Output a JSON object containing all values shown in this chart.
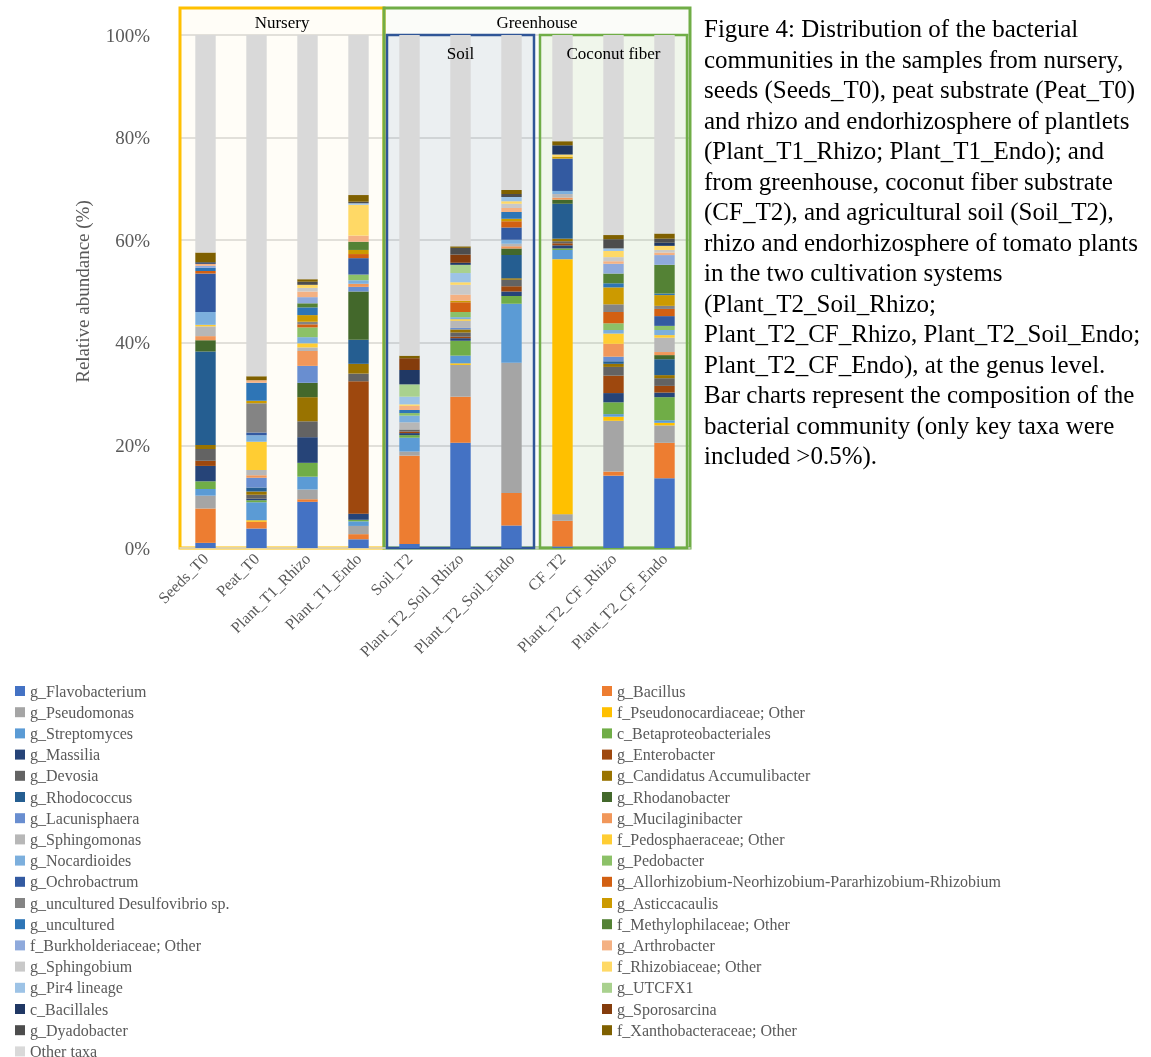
{
  "chart_data": {
    "type": "bar",
    "stacked": true,
    "ylabel": "Relative abundance (%)",
    "categories": [
      "Seeds_T0",
      "Peat_T0",
      "Plant_T1_Rhizo",
      "Plant_T1_Endo",
      "Soil_T2",
      "Plant_T2_Soil_Rhizo",
      "Plant_T2_Soil_Endo",
      "CF_T2",
      "Plant_T2_CF_Rhizo",
      "Plant_T2_CF_Endo"
    ],
    "ylim": [
      0,
      100
    ],
    "yticks": [
      {
        "value": 0,
        "label": "0%"
      },
      {
        "value": 20,
        "label": "20%"
      },
      {
        "value": 40,
        "label": "40%"
      },
      {
        "value": 60,
        "label": "60%"
      },
      {
        "value": 80,
        "label": "80%"
      },
      {
        "value": 100,
        "label": "100%"
      }
    ],
    "grid": "y",
    "legend": "bottom",
    "bands": [
      {
        "axis": "x",
        "from": "Seeds_T0",
        "to": "Plant_T1_Endo",
        "label": "Nursery",
        "color": "#ffc000"
      },
      {
        "axis": "x",
        "from": "Soil_T2",
        "to": "Plant_T2_CF_Endo",
        "label": "Greenhouse",
        "color": "#70ad47"
      },
      {
        "axis": "x",
        "from": "Soil_T2",
        "to": "Plant_T2_Soil_Endo",
        "label": "Soil",
        "color": "#2f5597"
      },
      {
        "axis": "x",
        "from": "CF_T2",
        "to": "Plant_T2_CF_Endo",
        "label": "Coconut fiber",
        "color": "#70ad47"
      }
    ],
    "annotations": [
      "Figure 4: Distribution of the bacterial communities in the samples from nursery, seeds (Seeds_T0), peat substrate (Peat_T0) and rhizo and endorhizosphere of plantlets (Plant_T1_Rhizo; Plant_T1_Endo); and from greenhouse, coconut fiber substrate (CF_T2), and agricultural soil (Soil_T2), rhizo and endorhizosphere of tomato plants in the two cultivation systems (Plant_T2_Soil_Rhizo; Plant_T2_CF_Rhizo, Plant_T2_Soil_Endo; Plant_T2_CF_Endo), at the genus level. Bar charts represent the composition of the bacterial community (only key taxa were included >0.5%)."
    ],
    "series": [
      {
        "name": "g_Flavobacterium",
        "color": "#4472c4",
        "values": [
          1.0,
          3.8,
          9.0,
          1.7,
          0.8,
          20.5,
          4.4,
          0.3,
          14.1,
          13.6
        ]
      },
      {
        "name": "g_Bacillus",
        "color": "#ed7d31",
        "values": [
          6.7,
          1.3,
          0.5,
          1.0,
          17.2,
          9.0,
          6.3,
          5.0,
          0.8,
          6.9
        ]
      },
      {
        "name": "g_Pseudomonas",
        "color": "#a5a5a5",
        "values": [
          2.5,
          null,
          1.9,
          1.6,
          0.8,
          6.2,
          25.4,
          1.3,
          9.9,
          3.4
        ]
      },
      {
        "name": "f_Pseudonocardiaceae; Other",
        "color": "#ffc000",
        "values": [
          null,
          0.3,
          null,
          null,
          null,
          0.3,
          null,
          49.7,
          0.8,
          0.5
        ]
      },
      {
        "name": "g_Streptomyces",
        "color": "#5b9bd5",
        "values": [
          1.3,
          3.5,
          2.5,
          0.9,
          2.7,
          1.5,
          11.5,
          1.8,
          0.5,
          0.5
        ]
      },
      {
        "name": "c_Betaproteobacteriales",
        "color": "#70ad47",
        "values": [
          1.5,
          0.4,
          2.7,
          0.3,
          0.5,
          2.9,
          1.5,
          0.3,
          2.3,
          4.5
        ]
      },
      {
        "name": "g_Massilia",
        "color": "#264478",
        "values": [
          3.0,
          0.3,
          5.0,
          1.2,
          0.4,
          0.5,
          0.9,
          0.6,
          1.8,
          0.9
        ]
      },
      {
        "name": "g_Enterobacter",
        "color": "#9e480e",
        "values": [
          1.0,
          null,
          null,
          25.8,
          0.3,
          0.3,
          1.0,
          0.4,
          3.4,
          1.3
        ]
      },
      {
        "name": "g_Devosia",
        "color": "#636363",
        "values": [
          2.3,
          0.8,
          3.1,
          1.5,
          0.4,
          0.8,
          1.3,
          0.4,
          1.7,
          1.5
        ]
      },
      {
        "name": "g_Candidatus Accumulibacter",
        "color": "#997300",
        "values": [
          0.8,
          0.6,
          4.7,
          1.9,
          null,
          0.6,
          0.3,
          0.5,
          0.6,
          0.6
        ]
      },
      {
        "name": "g_Rhodococcus",
        "color": "#255e91",
        "values": [
          18.2,
          0.8,
          null,
          4.7,
          null,
          null,
          4.5,
          6.8,
          0.5,
          3.1
        ]
      },
      {
        "name": "g_Rhodanobacter",
        "color": "#43682b",
        "values": [
          2.2,
          null,
          2.8,
          9.4,
          null,
          null,
          1.3,
          0.8,
          null,
          0.8
        ]
      },
      {
        "name": "g_Lacunisphaera",
        "color": "#698ed0",
        "values": [
          null,
          1.9,
          3.3,
          0.9,
          null,
          0.3,
          null,
          null,
          0.9,
          null
        ]
      },
      {
        "name": "g_Mucilaginibacter",
        "color": "#f1975a",
        "values": [
          0.8,
          0.5,
          2.9,
          0.6,
          null,
          null,
          0.4,
          0.4,
          2.5,
          0.6
        ]
      },
      {
        "name": "g_Sphingomonas",
        "color": "#b7b7b7",
        "values": [
          1.9,
          1.0,
          0.7,
          null,
          1.4,
          1.4,
          0.5,
          0.7,
          null,
          2.8
        ]
      },
      {
        "name": "f_Pedosphaeraceae; Other",
        "color": "#ffcd33",
        "values": [
          0.3,
          5.5,
          0.8,
          null,
          null,
          0.3,
          null,
          null,
          2.0,
          0.5
        ]
      },
      {
        "name": "g_Nocardioides",
        "color": "#7cafdd",
        "values": [
          2.5,
          1.3,
          1.2,
          0.7,
          1.3,
          0.4,
          0.8,
          0.6,
          0.7,
          1.0
        ]
      },
      {
        "name": "g_Pedobacter",
        "color": "#8cc168",
        "values": [
          null,
          null,
          1.9,
          1.1,
          0.5,
          1.0,
          null,
          null,
          1.3,
          0.8
        ]
      },
      {
        "name": "g_Ochrobactrum",
        "color": "#335aa1",
        "values": [
          7.5,
          0.5,
          null,
          3.2,
          null,
          null,
          2.4,
          6.3,
          null,
          1.9
        ]
      },
      {
        "name": "g_Allorhizobium-Neorhizobium-Pararhizobium-Rhizobium",
        "color": "#d26012",
        "values": [
          0.5,
          null,
          0.6,
          0.8,
          null,
          1.9,
          1.2,
          null,
          2.2,
          1.4
        ]
      },
      {
        "name": "g_uncultured Desulfovibrio sp.",
        "color": "#848484",
        "values": [
          null,
          5.7,
          0.5,
          null,
          null,
          null,
          null,
          null,
          1.5,
          0.6
        ]
      },
      {
        "name": "g_Asticcacaulis",
        "color": "#cc9a00",
        "values": [
          null,
          0.5,
          1.3,
          0.8,
          null,
          0.3,
          0.5,
          0.4,
          3.3,
          2.1
        ]
      },
      {
        "name": "g_uncultured",
        "color": "#2e75b6",
        "values": [
          0.6,
          3.5,
          1.5,
          null,
          0.6,
          null,
          1.3,
          null,
          0.8,
          0.3
        ]
      },
      {
        "name": "f_Methylophilaceae; Other",
        "color": "#548235",
        "values": [
          null,
          null,
          0.8,
          1.6,
          null,
          null,
          null,
          null,
          1.9,
          5.6
        ]
      },
      {
        "name": "f_Burkholderiaceae; Other",
        "color": "#8faadc",
        "values": [
          0.4,
          null,
          1.2,
          null,
          null,
          null,
          null,
          null,
          1.9,
          1.9
        ]
      },
      {
        "name": "g_Arthrobacter",
        "color": "#f4b183",
        "values": [
          0.4,
          0.5,
          1.1,
          1.2,
          0.8,
          1.2,
          0.8,
          null,
          0.5,
          0.5
        ]
      },
      {
        "name": "g_Sphingobium",
        "color": "#c9c9c9",
        "values": [
          null,
          null,
          0.7,
          null,
          null,
          1.9,
          0.8,
          null,
          0.8,
          0.5
        ]
      },
      {
        "name": "f_Rhizobiaceae; Other",
        "color": "#ffd966",
        "values": [
          null,
          null,
          0.6,
          6.0,
          0.3,
          0.5,
          0.5,
          0.4,
          1.2,
          0.8
        ]
      },
      {
        "name": "g_Pir4 lineage",
        "color": "#9dc3e6",
        "values": [
          null,
          null,
          null,
          0.3,
          1.5,
          1.8,
          0.8,
          null,
          0.5,
          null
        ]
      },
      {
        "name": "g_UTCFX1",
        "color": "#a9d18e",
        "values": [
          null,
          null,
          null,
          null,
          2.4,
          1.6,
          null,
          null,
          null,
          null
        ]
      },
      {
        "name": "c_Bacillales",
        "color": "#203864",
        "values": [
          0.3,
          null,
          null,
          null,
          2.8,
          0.4,
          null,
          1.8,
          null,
          0.6
        ]
      },
      {
        "name": "g_Sporosarcina",
        "color": "#843c0c",
        "values": [
          null,
          null,
          null,
          null,
          2.3,
          1.6,
          null,
          null,
          null,
          null
        ]
      },
      {
        "name": "g_Dyadobacter",
        "color": "#4d4d4d",
        "values": [
          null,
          null,
          0.6,
          0.3,
          null,
          1.3,
          0.6,
          null,
          1.8,
          0.8
        ]
      },
      {
        "name": "f_Xanthobacteraceae; Other",
        "color": "#7f6000",
        "values": [
          1.9,
          0.8,
          0.5,
          1.3,
          0.5,
          0.3,
          0.8,
          0.8,
          0.8,
          1.0
        ]
      },
      {
        "name": "Other taxa",
        "color": "#d9d9d9",
        "values": [
          42.4,
          66.5,
          47.6,
          31.2,
          62.5,
          41.2,
          30.2,
          20.7,
          39.0,
          38.7
        ]
      }
    ]
  }
}
